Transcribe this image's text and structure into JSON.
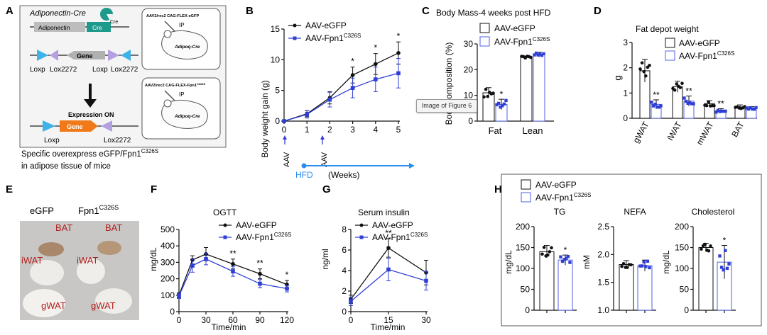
{
  "tooltip": "Image of Figure 6",
  "panelA": {
    "letter": "A",
    "cre_title": "Adiponectin-Cre",
    "adiponectin": "Adiponectin",
    "cre": "Cre",
    "cre_pie": "Cre",
    "gene": "Gene",
    "loxp1": "Loxp",
    "lox2272_1": "Lox2272",
    "loxp2": "Loxp",
    "lox2272_2": "Lox2272",
    "expression_on": "Expression ON",
    "gene2": "Gene",
    "loxp3": "Loxp",
    "lox2272_3": "Lox2272",
    "mouse1_title": "AAV2/rec2 CAG-FLEX-eGFP",
    "mouse1_ip": "IP",
    "mouse1_name": "Adipoq-Cre",
    "mouse2_title": "AAV2/rec2 CAG-FLEX-Fpn1",
    "mouse2_title_sup": "C326S",
    "mouse2_ip": "IP",
    "mouse2_name": "Adipoq-Cre",
    "caption_line1": "Specific overexpress eGFP/Fpn1",
    "caption_line1_sup": "C326S",
    "caption_line2": "in adipose tissue of mice"
  },
  "panelB": {
    "letter": "B",
    "legend": [
      "AAV-eGFP",
      "AAV-Fpn1"
    ],
    "legend_sup": "C326S",
    "ylabel": "Body weight gain (g)",
    "aav1": "AAV",
    "aav2": "AAV",
    "hfd": "HFD",
    "weeks": "(Weeks)",
    "stars": [
      "*",
      "*",
      "*"
    ]
  },
  "panelC": {
    "letter": "C",
    "title": "Body Mass-4 weeks post HFD",
    "legend": [
      "AAV-eGFP",
      "AAV-Fpn1"
    ],
    "legend_sup": "C326S",
    "ylabel": "Body composition (%)",
    "star": "*"
  },
  "panelD": {
    "letter": "D",
    "title": "Fat depot weight",
    "legend": [
      "AAV-eGFP",
      "AAV-Fpn1"
    ],
    "legend_sup": "C326S",
    "ylabel": "g",
    "stars": [
      "**",
      "**",
      "**"
    ]
  },
  "panelE": {
    "letter": "E",
    "label_egfp": "eGFP",
    "label_fpn": "Fpn1",
    "label_fpn_sup": "C326S",
    "tissue": [
      "BAT",
      "BAT",
      "iWAT",
      "iWAT",
      "gWAT",
      "gWAT"
    ]
  },
  "panelF": {
    "letter": "F",
    "title": "OGTT",
    "legend": [
      "AAV-eGFP",
      "AAV-Fpn1"
    ],
    "legend_sup": "C326S",
    "ylabel": "mg/dL",
    "xlabel": "Time/min",
    "stars": [
      "**",
      "**",
      "*"
    ]
  },
  "panelG": {
    "letter": "G",
    "title": "Serum insulin",
    "legend": [
      "AAV-eGFP",
      "AAV-Fpn1"
    ],
    "legend_sup": "C326S",
    "ylabel": "ng/ml",
    "xlabel": "Time/min",
    "star": "**"
  },
  "panelH": {
    "letter": "H",
    "legend": [
      "AAV-eGFP",
      "AAV-Fpn1"
    ],
    "legend_sup": "C326S",
    "titles": [
      "TG",
      "NEFA",
      "Cholesterol"
    ],
    "ylabels": [
      "mg/dL",
      "mM",
      "mg/dL"
    ],
    "stars": [
      "*",
      "*"
    ]
  },
  "colors": {
    "egfp": "#111111",
    "fpn": "#2f3fd6",
    "bar_edge_fpn": "#5060e6",
    "hfd": "#2b8ff0",
    "tissue_label": "#b02020"
  },
  "chart_data": [
    {
      "id": "B",
      "type": "line",
      "x": [
        0,
        1,
        2,
        3,
        4,
        5
      ],
      "xlim": [
        0,
        5
      ],
      "ylim": [
        0,
        15
      ],
      "yticks": [
        0,
        5,
        10,
        15
      ],
      "xticks": [
        "0",
        "1",
        "2",
        "3",
        "4",
        "5"
      ],
      "series": [
        {
          "name": "AAV-eGFP",
          "values": [
            0,
            1.2,
            3.8,
            7.5,
            9.3,
            11.1
          ],
          "err": [
            0,
            0.5,
            1.0,
            1.3,
            1.7,
            1.8
          ]
        },
        {
          "name": "AAV-Fpn1C326S",
          "values": [
            0,
            1.1,
            3.5,
            5.4,
            6.8,
            7.8
          ],
          "err": [
            0,
            0.6,
            1.2,
            1.6,
            2.0,
            2.4
          ]
        }
      ]
    },
    {
      "id": "C",
      "type": "bar",
      "categories": [
        "Fat",
        "Lean"
      ],
      "ylim": [
        0,
        30
      ],
      "yticks": [
        0,
        10,
        20,
        30
      ],
      "series": [
        {
          "name": "AAV-eGFP",
          "values": [
            11,
            24.8
          ],
          "err": [
            2,
            0.5
          ]
        },
        {
          "name": "AAV-Fpn1C326S",
          "values": [
            6.5,
            25.8
          ],
          "err": [
            2,
            0.9
          ]
        }
      ]
    },
    {
      "id": "D",
      "type": "bar",
      "categories": [
        "gWAT",
        "iWAT",
        "mWAT",
        "BAT"
      ],
      "ylim": [
        0,
        3
      ],
      "yticks": [
        0,
        1,
        2,
        3
      ],
      "series": [
        {
          "name": "AAV-eGFP",
          "values": [
            1.88,
            1.25,
            0.58,
            0.45
          ],
          "err": [
            0.45,
            0.22,
            0.12,
            0.08
          ]
        },
        {
          "name": "AAV-Fpn1C326S",
          "values": [
            0.55,
            0.68,
            0.3,
            0.4
          ],
          "err": [
            0.18,
            0.2,
            0.08,
            0.06
          ]
        }
      ]
    },
    {
      "id": "F",
      "type": "line",
      "x": [
        0,
        15,
        30,
        60,
        90,
        120
      ],
      "xlim": [
        0,
        120
      ],
      "ylim": [
        0,
        500
      ],
      "yticks": [
        0,
        100,
        200,
        300,
        400,
        500
      ],
      "xticks": [
        "0",
        "30",
        "60",
        "90",
        "120"
      ],
      "series": [
        {
          "name": "AAV-eGFP",
          "values": [
            100,
            315,
            350,
            290,
            230,
            165
          ],
          "err": [
            15,
            25,
            40,
            30,
            30,
            25
          ]
        },
        {
          "name": "AAV-Fpn1C326S",
          "values": [
            95,
            280,
            320,
            245,
            170,
            140
          ],
          "err": [
            15,
            40,
            35,
            30,
            25,
            20
          ]
        }
      ]
    },
    {
      "id": "G",
      "type": "line",
      "x": [
        0,
        15,
        30
      ],
      "xlim": [
        0,
        30
      ],
      "ylim": [
        0,
        8
      ],
      "yticks": [
        0,
        2,
        4,
        6,
        8
      ],
      "xticks": [
        "0",
        "15",
        "30"
      ],
      "series": [
        {
          "name": "AAV-eGFP",
          "values": [
            1.2,
            6.2,
            3.8
          ],
          "err": [
            0.4,
            0.9,
            1.2
          ]
        },
        {
          "name": "AAV-Fpn1C326S",
          "values": [
            1.0,
            4.1,
            3.0
          ],
          "err": [
            0.4,
            1.1,
            0.9
          ]
        }
      ]
    },
    {
      "id": "H-TG",
      "type": "bar",
      "title": "TG",
      "ylim": [
        0,
        200
      ],
      "yticks": [
        0,
        50,
        100,
        150,
        200
      ],
      "series": [
        {
          "name": "AAV-eGFP",
          "values": [
            140
          ],
          "err": [
            15
          ]
        },
        {
          "name": "AAV-Fpn1C326S",
          "values": [
            120
          ],
          "err": [
            12
          ]
        }
      ]
    },
    {
      "id": "H-NEFA",
      "type": "bar",
      "title": "NEFA",
      "ylim": [
        1.0,
        2.5
      ],
      "yticks": [
        1.0,
        1.5,
        2.0,
        2.5
      ],
      "series": [
        {
          "name": "AAV-eGFP",
          "values": [
            1.82
          ],
          "err": [
            0.07
          ]
        },
        {
          "name": "AAV-Fpn1C326S",
          "values": [
            1.8
          ],
          "err": [
            0.1
          ]
        }
      ]
    },
    {
      "id": "H-Chol",
      "type": "bar",
      "title": "Cholesterol",
      "ylim": [
        0,
        200
      ],
      "yticks": [
        0,
        50,
        100,
        150,
        200
      ],
      "series": [
        {
          "name": "AAV-eGFP",
          "values": [
            150
          ],
          "err": [
            10
          ]
        },
        {
          "name": "AAV-Fpn1C326S",
          "values": [
            115
          ],
          "err": [
            40
          ]
        }
      ]
    }
  ]
}
